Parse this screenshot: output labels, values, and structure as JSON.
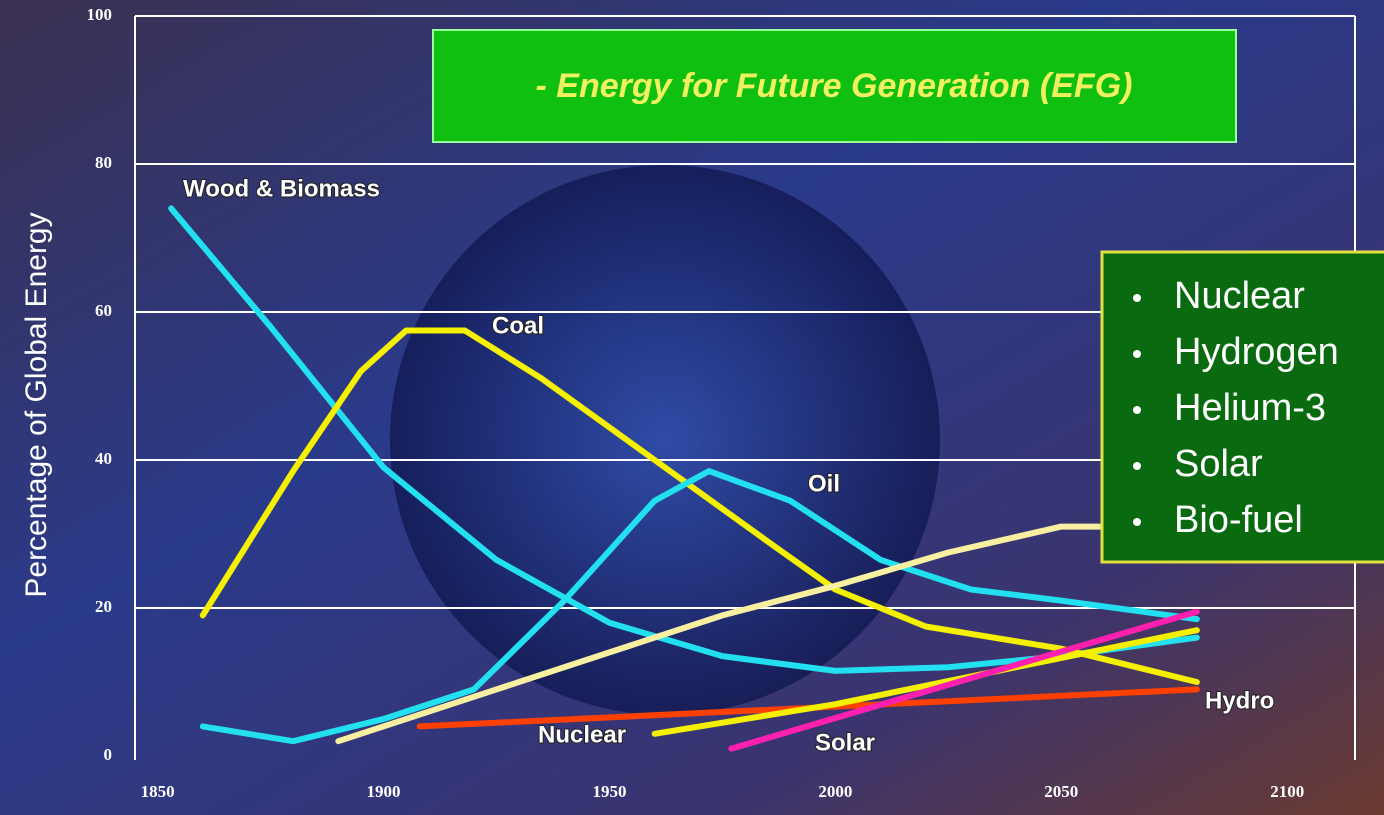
{
  "chart_data": {
    "type": "line",
    "title": "- Energy for Future Generation (EFG)",
    "y_label": "Percentage of Global Energy",
    "ylim": [
      0,
      100
    ],
    "yticks": [
      0,
      20,
      40,
      60,
      80,
      100
    ],
    "xlim": [
      1845,
      2115
    ],
    "xticks": [
      1850,
      1900,
      1950,
      2000,
      2050,
      2100
    ],
    "grid": true,
    "future_sources": [
      "Nuclear",
      "Hydrogen",
      "Helium-3",
      "Solar",
      "Bio-fuel"
    ],
    "series": [
      {
        "name": "Wood & Biomass",
        "color": "#22e0f0",
        "x": [
          1853,
          1875,
          1900,
          1925,
          1950,
          1975,
          2000,
          2025,
          2050,
          2080
        ],
        "values": [
          74,
          58,
          39,
          26.5,
          18,
          13.5,
          11.5,
          12,
          13.5,
          16
        ]
      },
      {
        "name": "Coal",
        "color": "#f5f000",
        "x": [
          1860,
          1880,
          1895,
          1905,
          1918,
          1935,
          1960,
          1985,
          2000,
          2020,
          2050,
          2080
        ],
        "values": [
          19,
          38.5,
          52,
          57.5,
          57.5,
          51,
          40,
          29,
          22.5,
          17.5,
          14.5,
          10
        ]
      },
      {
        "name": "Oil",
        "color": "#22e0f0",
        "x": [
          1860,
          1880,
          1900,
          1920,
          1940,
          1960,
          1972,
          1990,
          2010,
          2030,
          2050,
          2080
        ],
        "values": [
          4,
          2,
          5,
          9,
          21,
          34.5,
          38.5,
          34.5,
          26.5,
          22.5,
          21,
          18.5
        ]
      },
      {
        "color": "#f8f0a0",
        "x": [
          1890,
          1920,
          1950,
          1975,
          2000,
          2025,
          2050,
          2080
        ],
        "values": [
          2,
          8,
          14,
          19,
          23,
          27.5,
          31,
          31
        ]
      },
      {
        "name": "Hydro",
        "color": "#ff4000",
        "x": [
          1908,
          2080
        ],
        "values": [
          4,
          9
        ]
      },
      {
        "name": "Nuclear",
        "color": "#f5f000",
        "x": [
          1960,
          2000,
          2040,
          2080
        ],
        "values": [
          3,
          7,
          12,
          17
        ]
      },
      {
        "name": "Solar",
        "color": "#ff20b0",
        "x": [
          1977,
          2080
        ],
        "values": [
          1,
          19.5
        ]
      }
    ]
  }
}
